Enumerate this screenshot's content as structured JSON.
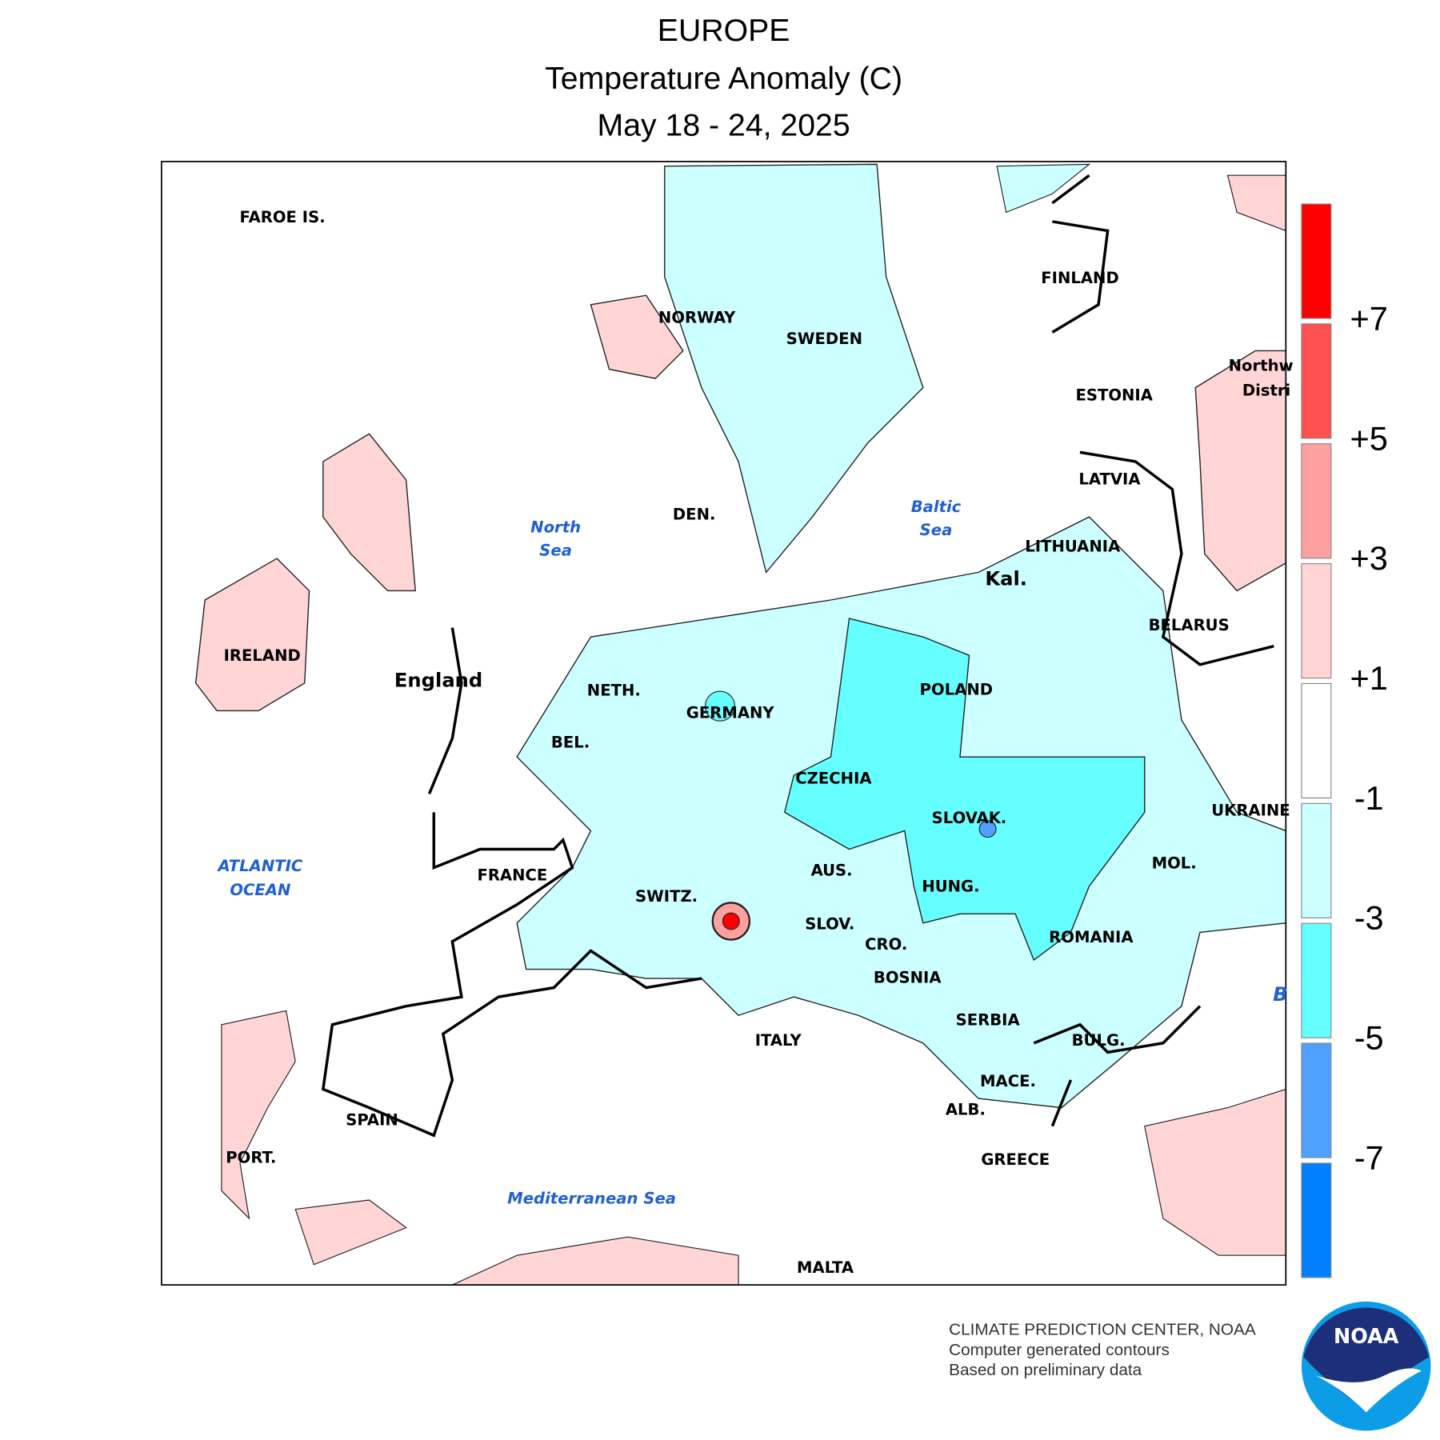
{
  "header": {
    "title": "EUROPE",
    "subtitle": "Temperature Anomaly (C)",
    "period": "May 18 - 24, 2025"
  },
  "labels": {
    "countries": [
      "FAROE IS.",
      "NORWAY",
      "SWEDEN",
      "FINLAND",
      "ESTONIA",
      "LATVIA",
      "LITHUANIA",
      "Kal.",
      "BELARUS",
      "IRELAND",
      "England",
      "NETH.",
      "GERMANY",
      "POLAND",
      "BEL.",
      "CZECHIA",
      "SLOVAK.",
      "UKRAINE",
      "FRANCE",
      "AUS.",
      "MOL.",
      "SWITZ.",
      "HUNG.",
      "SLOV.",
      "ROMANIA",
      "CRO.",
      "BOSNIA",
      "SERBIA",
      "ITALY",
      "BULG.",
      "MACE.",
      "ALB.",
      "SPAIN",
      "GREECE",
      "PORT.",
      "MALTA",
      "DEN.",
      "Northw",
      "Distri"
    ],
    "seas": [
      "North",
      "Sea",
      "Baltic",
      "Sea",
      "ATLANTIC",
      "OCEAN",
      "Mediterranean Sea",
      "B"
    ]
  },
  "legend": {
    "colors": [
      "#ff0000",
      "#ff5050",
      "#ffa0a0",
      "#ffd5d5",
      "#ffffff",
      "#ccffff",
      "#66ffff",
      "#50a0ff",
      "#0080ff"
    ],
    "labels": [
      "+7",
      "+5",
      "+3",
      "+1",
      "-1",
      "-3",
      "-5",
      "-7"
    ]
  },
  "footer": {
    "lines": [
      "CLIMATE PREDICTION CENTER, NOAA",
      "Computer generated contours",
      "Based on preliminary data"
    ],
    "logo": "NOAA"
  }
}
